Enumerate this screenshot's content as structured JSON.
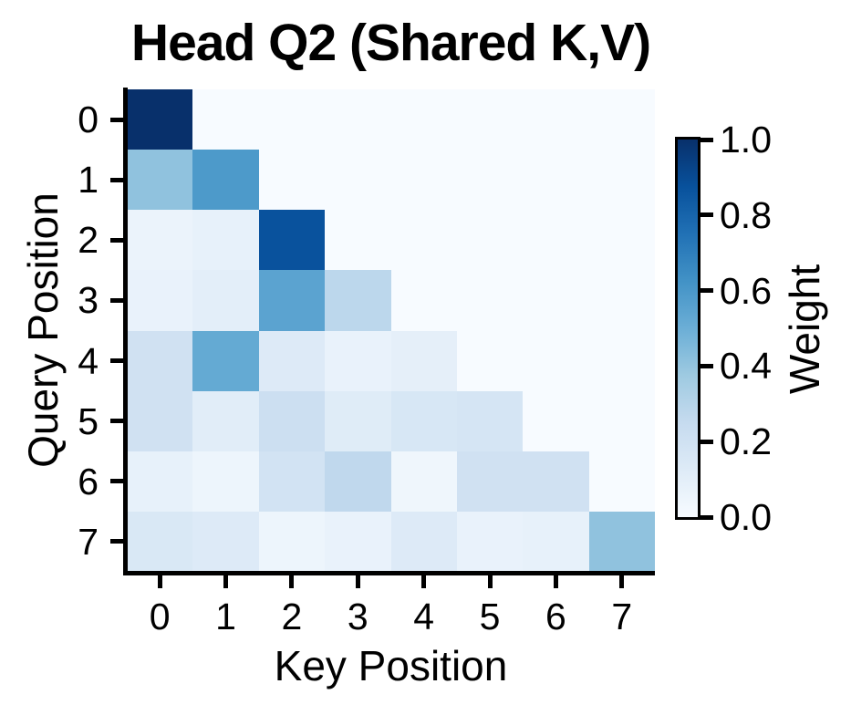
{
  "chart_data": {
    "type": "heatmap",
    "title": "Head Q2 (Shared K,V)",
    "xlabel": "Key Position",
    "ylabel": "Query Position",
    "x_tick_labels": [
      "0",
      "1",
      "2",
      "3",
      "4",
      "5",
      "6",
      "7"
    ],
    "y_tick_labels": [
      "0",
      "1",
      "2",
      "3",
      "4",
      "5",
      "6",
      "7"
    ],
    "colormap": "Blues",
    "colormap_stops": [
      "#f7fbff",
      "#deebf7",
      "#c6dbef",
      "#9ecae1",
      "#6baed6",
      "#4292c6",
      "#2171b5",
      "#08519c",
      "#08306b"
    ],
    "value_range": [
      0.0,
      1.0
    ],
    "colorbar": {
      "label": "Weight",
      "tick_labels": [
        "0.0",
        "0.2",
        "0.4",
        "0.6",
        "0.8",
        "1.0"
      ],
      "tick_values": [
        0.0,
        0.2,
        0.4,
        0.6,
        0.8,
        1.0
      ]
    },
    "matrix": [
      [
        1.0,
        0.0,
        0.0,
        0.0,
        0.0,
        0.0,
        0.0,
        0.0
      ],
      [
        0.41,
        0.59,
        0.0,
        0.0,
        0.0,
        0.0,
        0.0,
        0.0
      ],
      [
        0.06,
        0.08,
        0.87,
        0.0,
        0.0,
        0.0,
        0.0,
        0.0
      ],
      [
        0.07,
        0.1,
        0.55,
        0.28,
        0.0,
        0.0,
        0.0,
        0.0
      ],
      [
        0.2,
        0.52,
        0.13,
        0.07,
        0.09,
        0.0,
        0.0,
        0.0
      ],
      [
        0.2,
        0.11,
        0.22,
        0.12,
        0.16,
        0.17,
        0.0,
        0.0
      ],
      [
        0.08,
        0.05,
        0.19,
        0.27,
        0.04,
        0.2,
        0.2,
        0.0
      ],
      [
        0.15,
        0.13,
        0.05,
        0.07,
        0.13,
        0.07,
        0.08,
        0.41
      ]
    ],
    "colors": {
      "background": "#ffffff",
      "axis": "#000000",
      "text": "#000000",
      "masked_cell": "#f7fbff"
    }
  }
}
